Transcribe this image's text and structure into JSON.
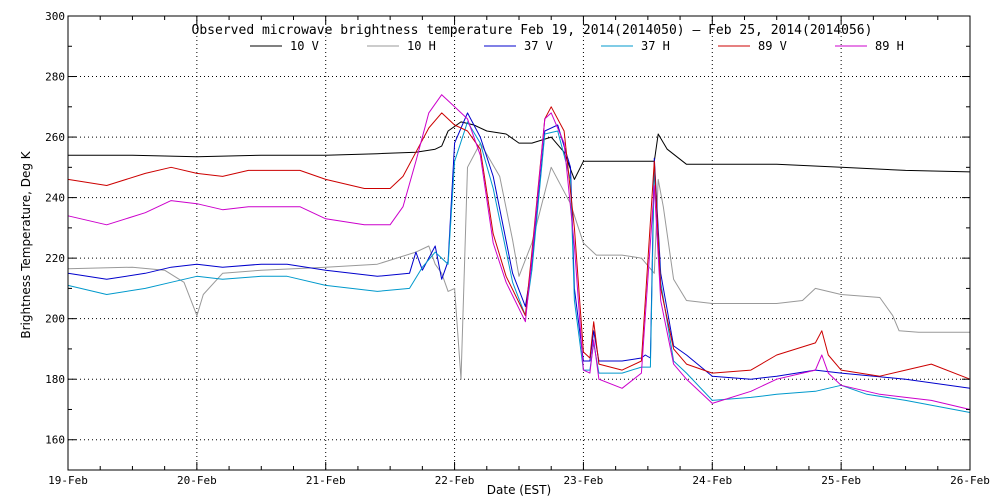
{
  "chart_data": {
    "type": "line",
    "title": "Observed microwave brightness temperature Feb 19, 2014(2014050) – Feb 25, 2014(2014056)",
    "xlabel": "Date (EST)",
    "ylabel": "Brightness Temperature, Deg K",
    "x_ticks": [
      "19-Feb",
      "20-Feb",
      "21-Feb",
      "22-Feb",
      "23-Feb",
      "24-Feb",
      "25-Feb",
      "26-Feb"
    ],
    "xlim": [
      0,
      7
    ],
    "ylim": [
      150,
      300
    ],
    "y_ticks": [
      160,
      180,
      200,
      220,
      240,
      260,
      280,
      300
    ],
    "grid": true,
    "legend_position": "top-center",
    "series": [
      {
        "name": "10 V",
        "color": "#000000",
        "points": [
          [
            0,
            254
          ],
          [
            0.5,
            254
          ],
          [
            1,
            253.5
          ],
          [
            1.5,
            254
          ],
          [
            2,
            254
          ],
          [
            2.4,
            254.5
          ],
          [
            2.7,
            255
          ],
          [
            2.85,
            256
          ],
          [
            2.9,
            257
          ],
          [
            2.95,
            262
          ],
          [
            3.05,
            265
          ],
          [
            3.15,
            264
          ],
          [
            3.25,
            262
          ],
          [
            3.4,
            261
          ],
          [
            3.5,
            258
          ],
          [
            3.6,
            258
          ],
          [
            3.75,
            260
          ],
          [
            3.85,
            255
          ],
          [
            3.93,
            246
          ],
          [
            4.0,
            252
          ],
          [
            4.5,
            252
          ],
          [
            4.55,
            252
          ],
          [
            4.58,
            261
          ],
          [
            4.65,
            256
          ],
          [
            4.8,
            251
          ],
          [
            5,
            251
          ],
          [
            5.5,
            251
          ],
          [
            6,
            250
          ],
          [
            6.5,
            249
          ],
          [
            7,
            248.5
          ]
        ]
      },
      {
        "name": "10 H",
        "color": "#999999",
        "points": [
          [
            0,
            216.5
          ],
          [
            0.5,
            217
          ],
          [
            0.75,
            216
          ],
          [
            0.9,
            212
          ],
          [
            1.0,
            201
          ],
          [
            1.05,
            208
          ],
          [
            1.2,
            215
          ],
          [
            1.5,
            216
          ],
          [
            2,
            217
          ],
          [
            2.4,
            218
          ],
          [
            2.7,
            222
          ],
          [
            2.8,
            224
          ],
          [
            2.85,
            218
          ],
          [
            2.9,
            215
          ],
          [
            2.95,
            209
          ],
          [
            3.0,
            210
          ],
          [
            3.05,
            180
          ],
          [
            3.1,
            250
          ],
          [
            3.2,
            258
          ],
          [
            3.35,
            247
          ],
          [
            3.45,
            226
          ],
          [
            3.5,
            214
          ],
          [
            3.6,
            225
          ],
          [
            3.75,
            250
          ],
          [
            3.9,
            238
          ],
          [
            4.0,
            225
          ],
          [
            4.1,
            221
          ],
          [
            4.3,
            221
          ],
          [
            4.45,
            220
          ],
          [
            4.55,
            215
          ],
          [
            4.58,
            246
          ],
          [
            4.62,
            237
          ],
          [
            4.7,
            213
          ],
          [
            4.8,
            206
          ],
          [
            5,
            205
          ],
          [
            5.5,
            205
          ],
          [
            5.7,
            206
          ],
          [
            5.8,
            210
          ],
          [
            6,
            208
          ],
          [
            6.3,
            207
          ],
          [
            6.4,
            201
          ],
          [
            6.45,
            196
          ],
          [
            6.6,
            195.5
          ],
          [
            7,
            195.5
          ]
        ]
      },
      {
        "name": "37 V",
        "color": "#0000cc",
        "points": [
          [
            0,
            215
          ],
          [
            0.3,
            213
          ],
          [
            0.6,
            215
          ],
          [
            0.8,
            217
          ],
          [
            1.0,
            218
          ],
          [
            1.2,
            217
          ],
          [
            1.5,
            218
          ],
          [
            1.7,
            218
          ],
          [
            2,
            216
          ],
          [
            2.4,
            214
          ],
          [
            2.65,
            215
          ],
          [
            2.7,
            222
          ],
          [
            2.75,
            216
          ],
          [
            2.85,
            224
          ],
          [
            2.9,
            213
          ],
          [
            2.95,
            219
          ],
          [
            3.0,
            258
          ],
          [
            3.1,
            268
          ],
          [
            3.2,
            260
          ],
          [
            3.3,
            247
          ],
          [
            3.45,
            215
          ],
          [
            3.55,
            204
          ],
          [
            3.6,
            218
          ],
          [
            3.7,
            262
          ],
          [
            3.8,
            264
          ],
          [
            3.9,
            250
          ],
          [
            3.93,
            210
          ],
          [
            4.0,
            186
          ],
          [
            4.05,
            186
          ],
          [
            4.08,
            196
          ],
          [
            4.12,
            186
          ],
          [
            4.3,
            186
          ],
          [
            4.45,
            187
          ],
          [
            4.48,
            188
          ],
          [
            4.52,
            187
          ],
          [
            4.55,
            253
          ],
          [
            4.6,
            215
          ],
          [
            4.7,
            191
          ],
          [
            4.8,
            188
          ],
          [
            5,
            181
          ],
          [
            5.3,
            180
          ],
          [
            5.5,
            181
          ],
          [
            5.8,
            183
          ],
          [
            6,
            182
          ],
          [
            6.5,
            180
          ],
          [
            7,
            177
          ]
        ]
      },
      {
        "name": "37 H",
        "color": "#0099cc",
        "points": [
          [
            0,
            211
          ],
          [
            0.3,
            208
          ],
          [
            0.6,
            210
          ],
          [
            0.8,
            212
          ],
          [
            1.0,
            214
          ],
          [
            1.2,
            213
          ],
          [
            1.5,
            214
          ],
          [
            1.7,
            214
          ],
          [
            2,
            211
          ],
          [
            2.4,
            209
          ],
          [
            2.65,
            210
          ],
          [
            2.75,
            217
          ],
          [
            2.85,
            222
          ],
          [
            2.95,
            218
          ],
          [
            3.0,
            252
          ],
          [
            3.1,
            265
          ],
          [
            3.2,
            258
          ],
          [
            3.3,
            243
          ],
          [
            3.45,
            212
          ],
          [
            3.55,
            201
          ],
          [
            3.6,
            216
          ],
          [
            3.7,
            261
          ],
          [
            3.8,
            262
          ],
          [
            3.9,
            246
          ],
          [
            3.93,
            206
          ],
          [
            4.0,
            183
          ],
          [
            4.05,
            183
          ],
          [
            4.08,
            192
          ],
          [
            4.12,
            182
          ],
          [
            4.3,
            182
          ],
          [
            4.45,
            184
          ],
          [
            4.52,
            184
          ],
          [
            4.55,
            250
          ],
          [
            4.6,
            212
          ],
          [
            4.7,
            186
          ],
          [
            4.8,
            182
          ],
          [
            5,
            173
          ],
          [
            5.3,
            174
          ],
          [
            5.5,
            175
          ],
          [
            5.8,
            176
          ],
          [
            6,
            178
          ],
          [
            6.2,
            175
          ],
          [
            6.5,
            173
          ],
          [
            7,
            169
          ]
        ]
      },
      {
        "name": "89 V",
        "color": "#cc0000",
        "points": [
          [
            0,
            246
          ],
          [
            0.3,
            244
          ],
          [
            0.6,
            248
          ],
          [
            0.8,
            250
          ],
          [
            1.0,
            248
          ],
          [
            1.2,
            247
          ],
          [
            1.4,
            249
          ],
          [
            1.6,
            249
          ],
          [
            1.8,
            249
          ],
          [
            2,
            246
          ],
          [
            2.3,
            243
          ],
          [
            2.5,
            243
          ],
          [
            2.6,
            247
          ],
          [
            2.7,
            255
          ],
          [
            2.8,
            263
          ],
          [
            2.9,
            268
          ],
          [
            3.0,
            264
          ],
          [
            3.1,
            262
          ],
          [
            3.2,
            256
          ],
          [
            3.3,
            228
          ],
          [
            3.4,
            214
          ],
          [
            3.55,
            201
          ],
          [
            3.6,
            222
          ],
          [
            3.7,
            266
          ],
          [
            3.75,
            270
          ],
          [
            3.85,
            262
          ],
          [
            3.93,
            230
          ],
          [
            4.0,
            189
          ],
          [
            4.05,
            187
          ],
          [
            4.08,
            199
          ],
          [
            4.12,
            185
          ],
          [
            4.3,
            183
          ],
          [
            4.45,
            186
          ],
          [
            4.55,
            252
          ],
          [
            4.6,
            210
          ],
          [
            4.7,
            190
          ],
          [
            4.8,
            185
          ],
          [
            5,
            182
          ],
          [
            5.3,
            183
          ],
          [
            5.5,
            188
          ],
          [
            5.8,
            192
          ],
          [
            5.85,
            196
          ],
          [
            5.9,
            188
          ],
          [
            6,
            183
          ],
          [
            6.3,
            181
          ],
          [
            6.5,
            183
          ],
          [
            6.7,
            185
          ],
          [
            7,
            180
          ]
        ]
      },
      {
        "name": "89 H",
        "color": "#cc00cc",
        "points": [
          [
            0,
            234
          ],
          [
            0.3,
            231
          ],
          [
            0.6,
            235
          ],
          [
            0.8,
            239
          ],
          [
            1.0,
            238
          ],
          [
            1.2,
            236
          ],
          [
            1.4,
            237
          ],
          [
            1.6,
            237
          ],
          [
            1.8,
            237
          ],
          [
            2,
            233
          ],
          [
            2.3,
            231
          ],
          [
            2.5,
            231
          ],
          [
            2.6,
            237
          ],
          [
            2.7,
            252
          ],
          [
            2.8,
            268
          ],
          [
            2.9,
            274
          ],
          [
            3.0,
            270
          ],
          [
            3.1,
            266
          ],
          [
            3.2,
            254
          ],
          [
            3.3,
            225
          ],
          [
            3.4,
            212
          ],
          [
            3.55,
            199
          ],
          [
            3.6,
            220
          ],
          [
            3.7,
            266
          ],
          [
            3.75,
            268
          ],
          [
            3.85,
            258
          ],
          [
            3.93,
            224
          ],
          [
            4.0,
            183
          ],
          [
            4.05,
            182
          ],
          [
            4.08,
            193
          ],
          [
            4.12,
            180
          ],
          [
            4.3,
            177
          ],
          [
            4.45,
            182
          ],
          [
            4.55,
            244
          ],
          [
            4.6,
            206
          ],
          [
            4.7,
            185
          ],
          [
            4.8,
            180
          ],
          [
            5,
            172
          ],
          [
            5.3,
            176
          ],
          [
            5.5,
            180
          ],
          [
            5.8,
            183
          ],
          [
            5.85,
            188
          ],
          [
            5.9,
            182
          ],
          [
            6,
            178
          ],
          [
            6.3,
            175
          ],
          [
            6.5,
            174
          ],
          [
            6.7,
            173
          ],
          [
            7,
            170
          ]
        ]
      }
    ]
  }
}
